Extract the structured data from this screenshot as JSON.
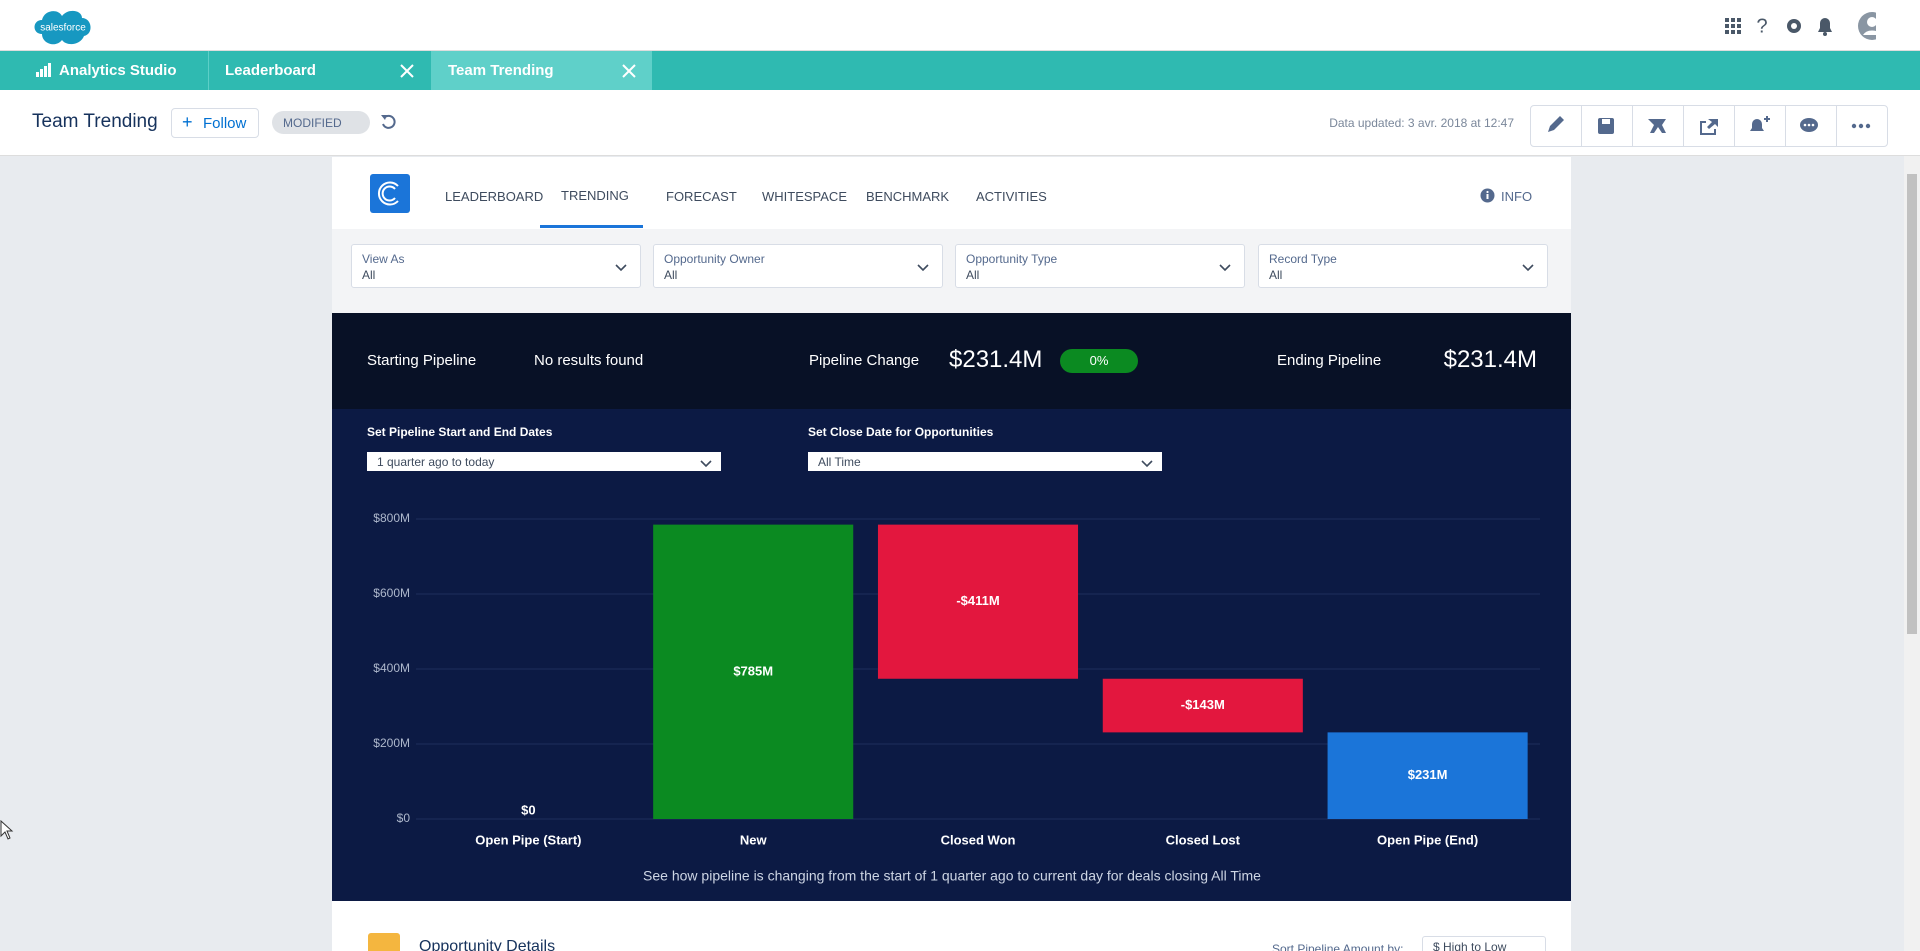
{
  "header": {
    "logo": "salesforce"
  },
  "tabs": [
    "Analytics Studio",
    "Leaderboard",
    "Team Trending"
  ],
  "page": {
    "title": "Team Trending",
    "follow": "Follow",
    "status": "MODIFIED",
    "updated": "Data updated: 3 avr. 2018 at 12:47"
  },
  "nav": {
    "items": [
      "LEADERBOARD",
      "TRENDING",
      "FORECAST",
      "WHITESPACE",
      "BENCHMARK",
      "ACTIVITIES"
    ],
    "info": "INFO"
  },
  "filters": [
    {
      "label": "View As",
      "value": "All"
    },
    {
      "label": "Opportunity Owner",
      "value": "All"
    },
    {
      "label": "Opportunity Type",
      "value": "All"
    },
    {
      "label": "Record Type",
      "value": "All"
    }
  ],
  "summary": {
    "start_label": "Starting Pipeline",
    "start_value": "No results found",
    "change_label": "Pipeline Change",
    "change_value": "$231.4M",
    "change_pct": "0%",
    "end_label": "Ending Pipeline",
    "end_value": "$231.4M"
  },
  "controls": [
    {
      "label": "Set Pipeline Start and End Dates",
      "value": "1 quarter ago to today"
    },
    {
      "label": "Set Close Date for Opportunities",
      "value": "All Time"
    }
  ],
  "chart_data": {
    "type": "waterfall",
    "categories": [
      "Open Pipe (Start)",
      "New",
      "Closed Won",
      "Closed Lost",
      "Open Pipe (End)"
    ],
    "values": [
      0,
      785,
      -411,
      -143,
      231
    ],
    "value_labels": [
      "$0",
      "$785M",
      "-$411M",
      "-$143M",
      "$231M"
    ],
    "colors": [
      "#0b8a21",
      "#0b8a21",
      "#e3173e",
      "#e3173e",
      "#1b75d9"
    ],
    "ylim": [
      0,
      800
    ],
    "yticks": [
      {
        "value": 0,
        "label": "$0"
      },
      {
        "value": 200,
        "label": "$200M"
      },
      {
        "value": 400,
        "label": "$400M"
      },
      {
        "value": 600,
        "label": "$600M"
      },
      {
        "value": 800,
        "label": "$800M"
      }
    ],
    "grid": true,
    "caption": "See how pipeline is changing from the start of 1 quarter ago to current day for deals closing All Time"
  },
  "details": {
    "title": "Opportunity Details",
    "sort_label": "Sort Pipeline Amount by:",
    "sort_value": "$ High to Low"
  }
}
